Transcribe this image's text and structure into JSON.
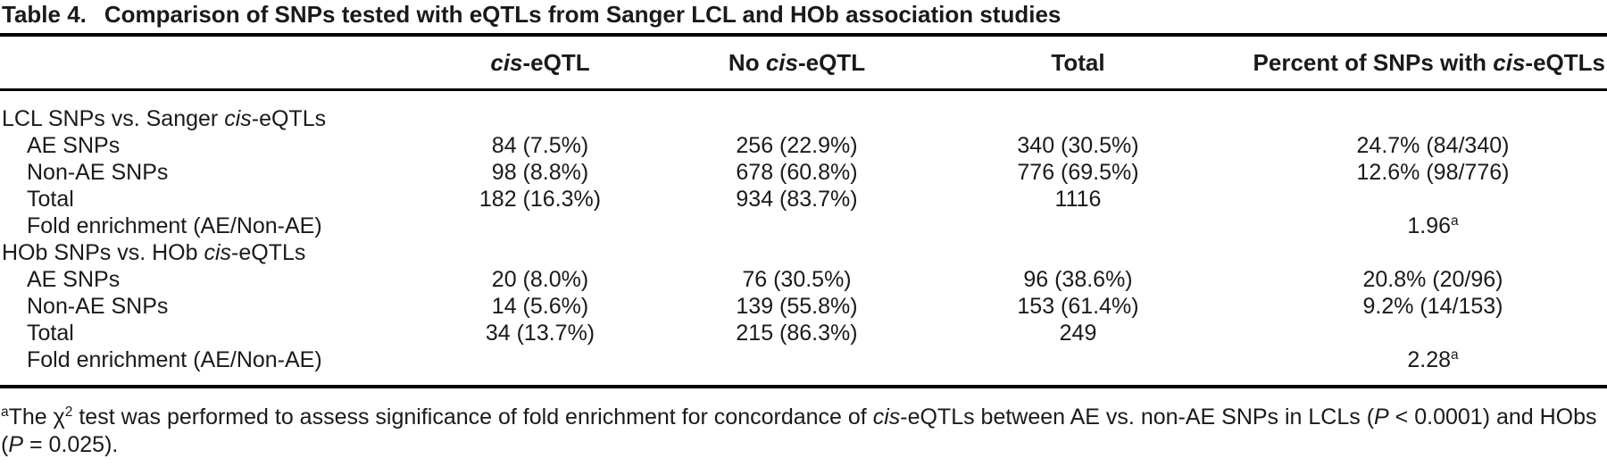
{
  "colors": {
    "background": "#ffffff",
    "text": "#1a1a1a",
    "rule": "#000000"
  },
  "title": {
    "label": "Table 4.",
    "text": "Comparison of SNPs tested with eQTLs from Sanger LCL and HOb association studies"
  },
  "header": {
    "cols": [
      [
        {
          "t": "cis",
          "i": true
        },
        {
          "t": "-eQTL"
        }
      ],
      [
        {
          "t": "No "
        },
        {
          "t": "cis",
          "i": true
        },
        {
          "t": "-eQTL"
        }
      ],
      [
        {
          "t": "Total"
        }
      ],
      [
        {
          "t": "Percent of SNPs with "
        },
        {
          "t": "cis",
          "i": true
        },
        {
          "t": "-eQTLs"
        }
      ]
    ]
  },
  "rows": [
    {
      "label": [
        {
          "t": "LCL SNPs vs. Sanger "
        },
        {
          "t": "cis",
          "i": true
        },
        {
          "t": "-eQTLs"
        }
      ],
      "cells": [
        "",
        "",
        "",
        ""
      ]
    },
    {
      "label": "AE SNPs",
      "cells": [
        "84 (7.5%)",
        "256 (22.9%)",
        "340 (30.5%)",
        "24.7% (84/340)"
      ]
    },
    {
      "label": "Non-AE SNPs",
      "cells": [
        "98 (8.8%)",
        "678 (60.8%)",
        "776 (69.5%)",
        "12.6% (98/776)"
      ]
    },
    {
      "label": "Total",
      "cells": [
        "182 (16.3%)",
        "934 (83.7%)",
        "1116",
        ""
      ]
    },
    {
      "label": "Fold enrichment (AE/Non-AE)",
      "cells": [
        "",
        "",
        "",
        [
          {
            "t": "1.96"
          },
          {
            "t": "a",
            "sup": true
          }
        ]
      ]
    },
    {
      "label": [
        {
          "t": "HOb SNPs vs. HOb "
        },
        {
          "t": "cis",
          "i": true
        },
        {
          "t": "-eQTLs"
        }
      ],
      "cells": [
        "",
        "",
        "",
        ""
      ]
    },
    {
      "label": "AE SNPs",
      "cells": [
        "20 (8.0%)",
        "76 (30.5%)",
        "96 (38.6%)",
        "20.8% (20/96)"
      ]
    },
    {
      "label": "Non-AE SNPs",
      "cells": [
        "14 (5.6%)",
        "139 (55.8%)",
        "153 (61.4%)",
        "9.2% (14/153)"
      ]
    },
    {
      "label": "Total",
      "cells": [
        "34 (13.7%)",
        "215 (86.3%)",
        "249",
        ""
      ]
    },
    {
      "label": "Fold enrichment (AE/Non-AE)",
      "cells": [
        "",
        "",
        "",
        [
          {
            "t": "2.28"
          },
          {
            "t": "a",
            "sup": true
          }
        ]
      ]
    }
  ],
  "footnote": [
    {
      "t": "a",
      "sup": true
    },
    {
      "t": "The χ"
    },
    {
      "t": "2",
      "sup": true
    },
    {
      "t": " test was performed to assess significance of fold enrichment for concordance of "
    },
    {
      "t": "cis",
      "i": true
    },
    {
      "t": "-eQTLs between AE vs. non-AE SNPs in LCLs ("
    },
    {
      "t": "P",
      "i": true
    },
    {
      "t": " < 0.0001) and HObs ("
    },
    {
      "t": "P",
      "i": true
    },
    {
      "t": " = 0.025)."
    }
  ]
}
